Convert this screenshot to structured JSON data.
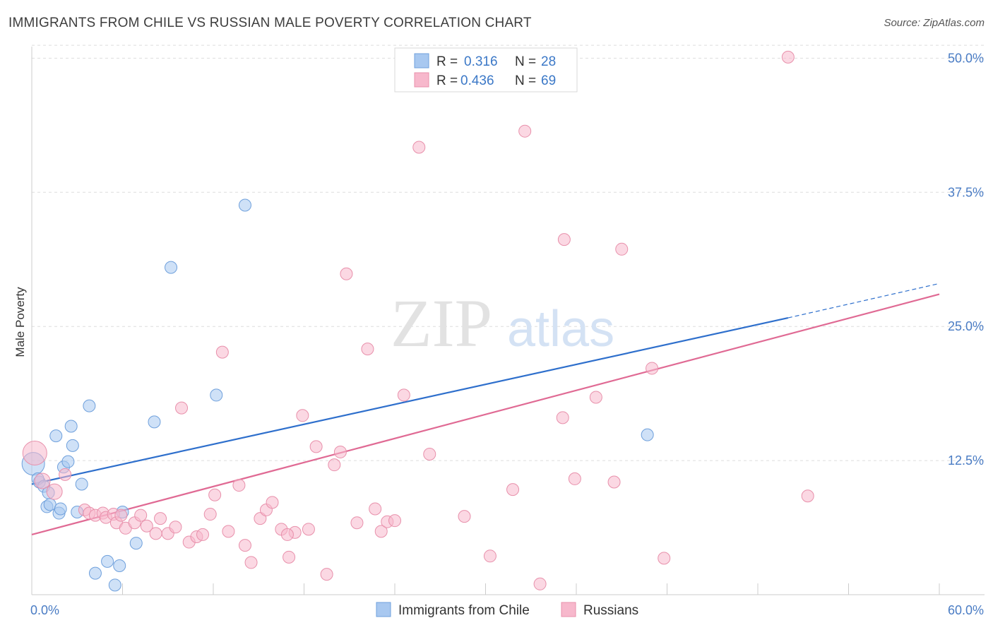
{
  "header": {
    "title": "IMMIGRANTS FROM CHILE VS RUSSIAN MALE POVERTY CORRELATION CHART",
    "source": "Source: ZipAtlas.com"
  },
  "watermark": {
    "zip": "ZIP",
    "atlas": "atlas"
  },
  "legend": {
    "rows": [
      {
        "r_label": "R =",
        "r_value": "0.316",
        "n_label": "N =",
        "n_value": "28",
        "color": "#a8c8f0"
      },
      {
        "r_label": "R =",
        "r_value": "0.436",
        "n_label": "N =",
        "n_value": "69",
        "color": "#f7b8cc"
      }
    ]
  },
  "chart_data": {
    "type": "scatter",
    "title": "IMMIGRANTS FROM CHILE VS RUSSIAN MALE POVERTY CORRELATION CHART",
    "xlabel": "",
    "ylabel": "Male Poverty",
    "xlim": [
      0,
      60
    ],
    "ylim": [
      0,
      52
    ],
    "x_tick_labels": [
      "0.0%",
      "60.0%"
    ],
    "y_ticks": [
      12.5,
      25.0,
      37.5,
      50.0
    ],
    "y_tick_labels": [
      "12.5%",
      "25.0%",
      "37.5%",
      "50.0%"
    ],
    "grid": "horizontal dashed",
    "legend_position": "top-center",
    "series": [
      {
        "name": "Immigrants from Chile",
        "color": "#a8c8f0",
        "stroke": "#6fa0dc",
        "line_color": "#2e6fcc",
        "trend": {
          "x": [
            0,
            50
          ],
          "y": [
            10.3,
            25.8
          ],
          "dashed_to": [
            60,
            29.0
          ]
        },
        "points": [
          [
            0.1,
            12.2
          ],
          [
            0.5,
            10.5
          ],
          [
            0.4,
            10.8
          ],
          [
            0.8,
            10.1
          ],
          [
            1.1,
            9.5
          ],
          [
            1.0,
            8.2
          ],
          [
            1.2,
            8.4
          ],
          [
            1.8,
            7.6
          ],
          [
            1.9,
            8.0
          ],
          [
            3.0,
            7.7
          ],
          [
            2.1,
            11.9
          ],
          [
            2.4,
            12.4
          ],
          [
            2.7,
            13.9
          ],
          [
            1.6,
            14.8
          ],
          [
            2.6,
            15.7
          ],
          [
            3.3,
            10.3
          ],
          [
            3.8,
            17.6
          ],
          [
            6.0,
            7.7
          ],
          [
            6.9,
            4.8
          ],
          [
            4.2,
            2.0
          ],
          [
            5.0,
            3.1
          ],
          [
            5.8,
            2.7
          ],
          [
            5.5,
            0.9
          ],
          [
            8.1,
            16.1
          ],
          [
            9.2,
            30.5
          ],
          [
            12.2,
            18.6
          ],
          [
            14.1,
            36.3
          ],
          [
            40.7,
            14.9
          ]
        ]
      },
      {
        "name": "Russians",
        "color": "#f7b8cc",
        "stroke": "#e890ab",
        "line_color": "#e06a94",
        "trend": {
          "x": [
            0,
            60
          ],
          "y": [
            5.6,
            28.0
          ]
        },
        "points": [
          [
            0.2,
            13.2
          ],
          [
            0.7,
            10.6
          ],
          [
            1.5,
            9.6
          ],
          [
            2.2,
            11.2
          ],
          [
            3.5,
            7.9
          ],
          [
            3.8,
            7.6
          ],
          [
            4.2,
            7.4
          ],
          [
            4.7,
            7.6
          ],
          [
            4.9,
            7.2
          ],
          [
            5.4,
            7.5
          ],
          [
            5.6,
            6.7
          ],
          [
            5.9,
            7.4
          ],
          [
            6.2,
            6.2
          ],
          [
            6.8,
            6.7
          ],
          [
            7.2,
            7.4
          ],
          [
            7.6,
            6.4
          ],
          [
            8.2,
            5.7
          ],
          [
            8.5,
            7.1
          ],
          [
            9.0,
            5.7
          ],
          [
            9.5,
            6.3
          ],
          [
            9.9,
            17.4
          ],
          [
            10.4,
            4.9
          ],
          [
            10.9,
            5.4
          ],
          [
            11.3,
            5.6
          ],
          [
            11.8,
            7.5
          ],
          [
            12.1,
            9.3
          ],
          [
            12.6,
            22.6
          ],
          [
            13.0,
            5.9
          ],
          [
            13.7,
            10.2
          ],
          [
            14.1,
            4.6
          ],
          [
            14.5,
            3.0
          ],
          [
            15.1,
            7.1
          ],
          [
            15.5,
            7.9
          ],
          [
            15.9,
            8.6
          ],
          [
            16.5,
            6.1
          ],
          [
            17.0,
            3.5
          ],
          [
            17.4,
            5.8
          ],
          [
            17.9,
            16.7
          ],
          [
            18.3,
            6.1
          ],
          [
            18.8,
            13.8
          ],
          [
            19.5,
            1.9
          ],
          [
            20.0,
            12.1
          ],
          [
            20.4,
            13.3
          ],
          [
            20.8,
            29.9
          ],
          [
            21.5,
            6.7
          ],
          [
            22.2,
            22.9
          ],
          [
            22.7,
            8.0
          ],
          [
            23.1,
            5.9
          ],
          [
            23.5,
            6.8
          ],
          [
            24.6,
            18.6
          ],
          [
            25.6,
            41.7
          ],
          [
            26.3,
            13.1
          ],
          [
            28.6,
            7.3
          ],
          [
            30.3,
            3.6
          ],
          [
            31.8,
            9.8
          ],
          [
            32.6,
            43.2
          ],
          [
            33.6,
            1.0
          ],
          [
            35.1,
            16.5
          ],
          [
            35.2,
            33.1
          ],
          [
            35.9,
            10.8
          ],
          [
            37.3,
            18.4
          ],
          [
            38.5,
            10.5
          ],
          [
            39.0,
            32.2
          ],
          [
            41.0,
            21.1
          ],
          [
            41.8,
            3.4
          ],
          [
            50.0,
            50.1
          ],
          [
            51.3,
            9.2
          ],
          [
            24.0,
            6.9
          ],
          [
            16.9,
            5.6
          ]
        ]
      }
    ]
  },
  "bottom_legend": [
    "Immigrants from Chile",
    "Russians"
  ]
}
